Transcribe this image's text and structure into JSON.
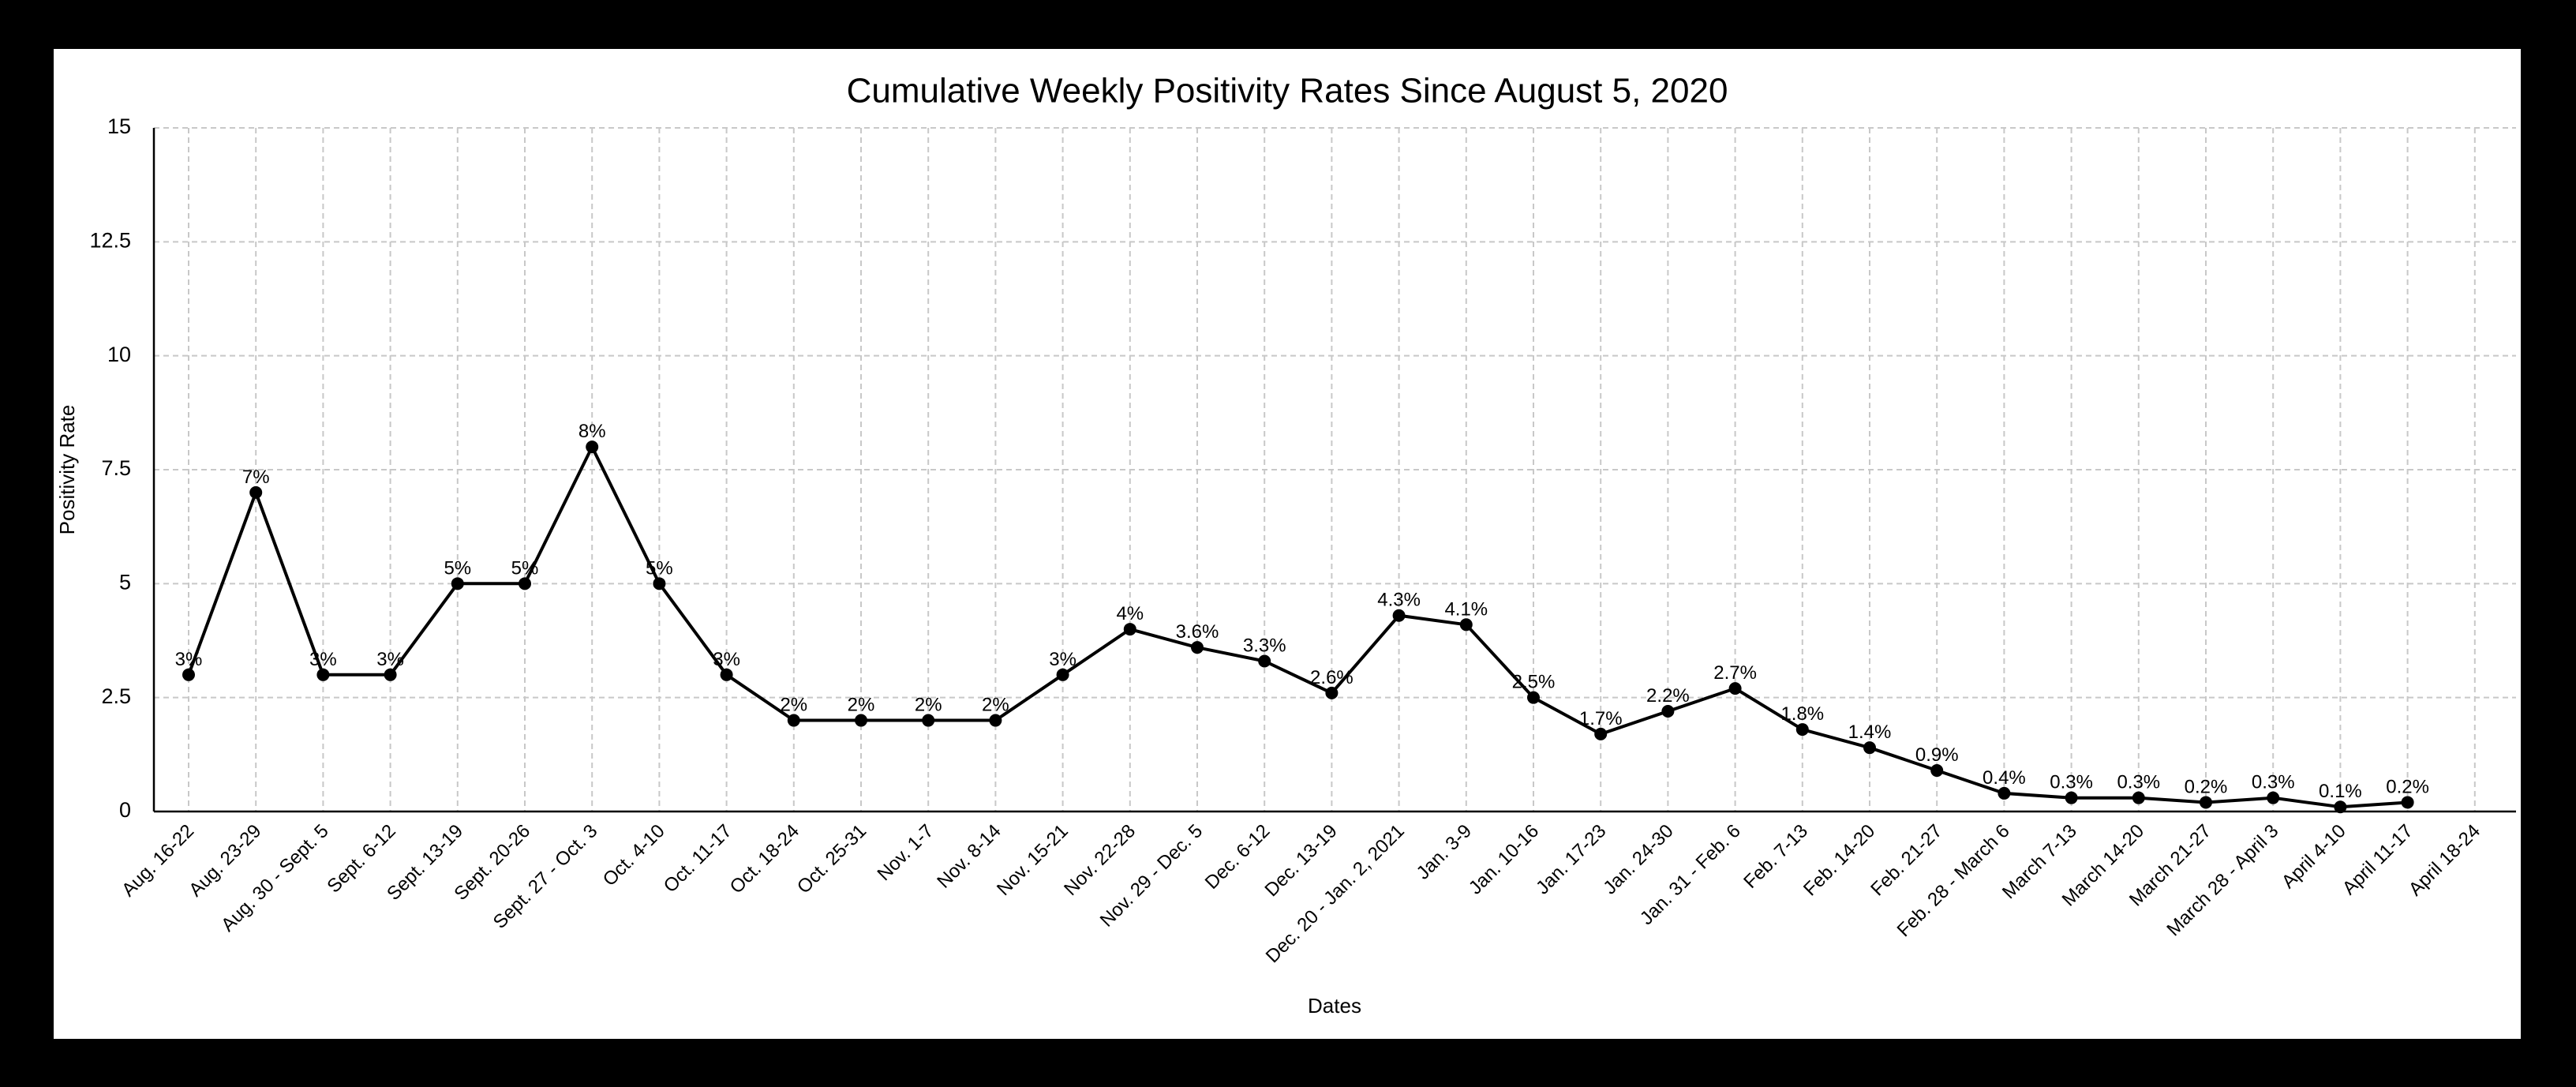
{
  "chart_data": {
    "type": "line",
    "title": "Cumulative Weekly Positivity Rates Since August 5, 2020",
    "xlabel": "Dates",
    "ylabel": "Positivity Rate",
    "ylim": [
      0,
      15
    ],
    "yticks": [
      "0",
      "2.5",
      "5",
      "7.5",
      "10",
      "12.5",
      "15"
    ],
    "grid": true,
    "legend": "none",
    "line_color": "#000000",
    "grid_color": "#c8c8c8",
    "categories": [
      "Aug. 16-22",
      "Aug. 23-29",
      "Aug. 30 - Sept. 5",
      "Sept. 6-12",
      "Sept. 13-19",
      "Sept. 20-26",
      "Sept. 27 - Oct. 3",
      "Oct. 4-10",
      "Oct. 11-17",
      "Oct. 18-24",
      "Oct. 25-31",
      "Nov. 1-7",
      "Nov. 8-14",
      "Nov. 15-21",
      "Nov. 22-28",
      "Nov. 29 - Dec. 5",
      "Dec. 6-12",
      "Dec. 13-19",
      "Dec. 20 - Jan. 2, 2021",
      "Jan. 3-9",
      "Jan. 10-16",
      "Jan. 17-23",
      "Jan. 24-30",
      "Jan. 31 - Feb. 6",
      "Feb. 7-13",
      "Feb. 14-20",
      "Feb. 21-27",
      "Feb. 28 - March 6",
      "March 7-13",
      "March 14-20",
      "March 21-27",
      "March 28 - April 3",
      "April 4-10",
      "April 11-17",
      "April 18-24"
    ],
    "values": [
      3,
      7,
      3,
      3,
      5,
      5,
      8,
      5,
      3,
      2,
      2,
      2,
      2,
      3,
      4,
      3.6,
      3.3,
      2.6,
      4.3,
      4.1,
      2.5,
      1.7,
      2.2,
      2.7,
      1.8,
      1.4,
      0.9,
      0.4,
      0.3,
      0.3,
      0.2,
      0.3,
      0.1,
      0.2,
      null
    ],
    "data_labels": [
      "3%",
      "7%",
      "3%",
      "3%",
      "5%",
      "5%",
      "8%",
      "5%",
      "3%",
      "2%",
      "2%",
      "2%",
      "2%",
      "3%",
      "4%",
      "3.6%",
      "3.3%",
      "2.6%",
      "4.3%",
      "4.1%",
      "2.5%",
      "1.7%",
      "2.2%",
      "2.7%",
      "1.8%",
      "1.4%",
      "0.9%",
      "0.4%",
      "0.3%",
      "0.3%",
      "0.2%",
      "0.3%",
      "0.1%",
      "0.2%",
      null
    ]
  }
}
